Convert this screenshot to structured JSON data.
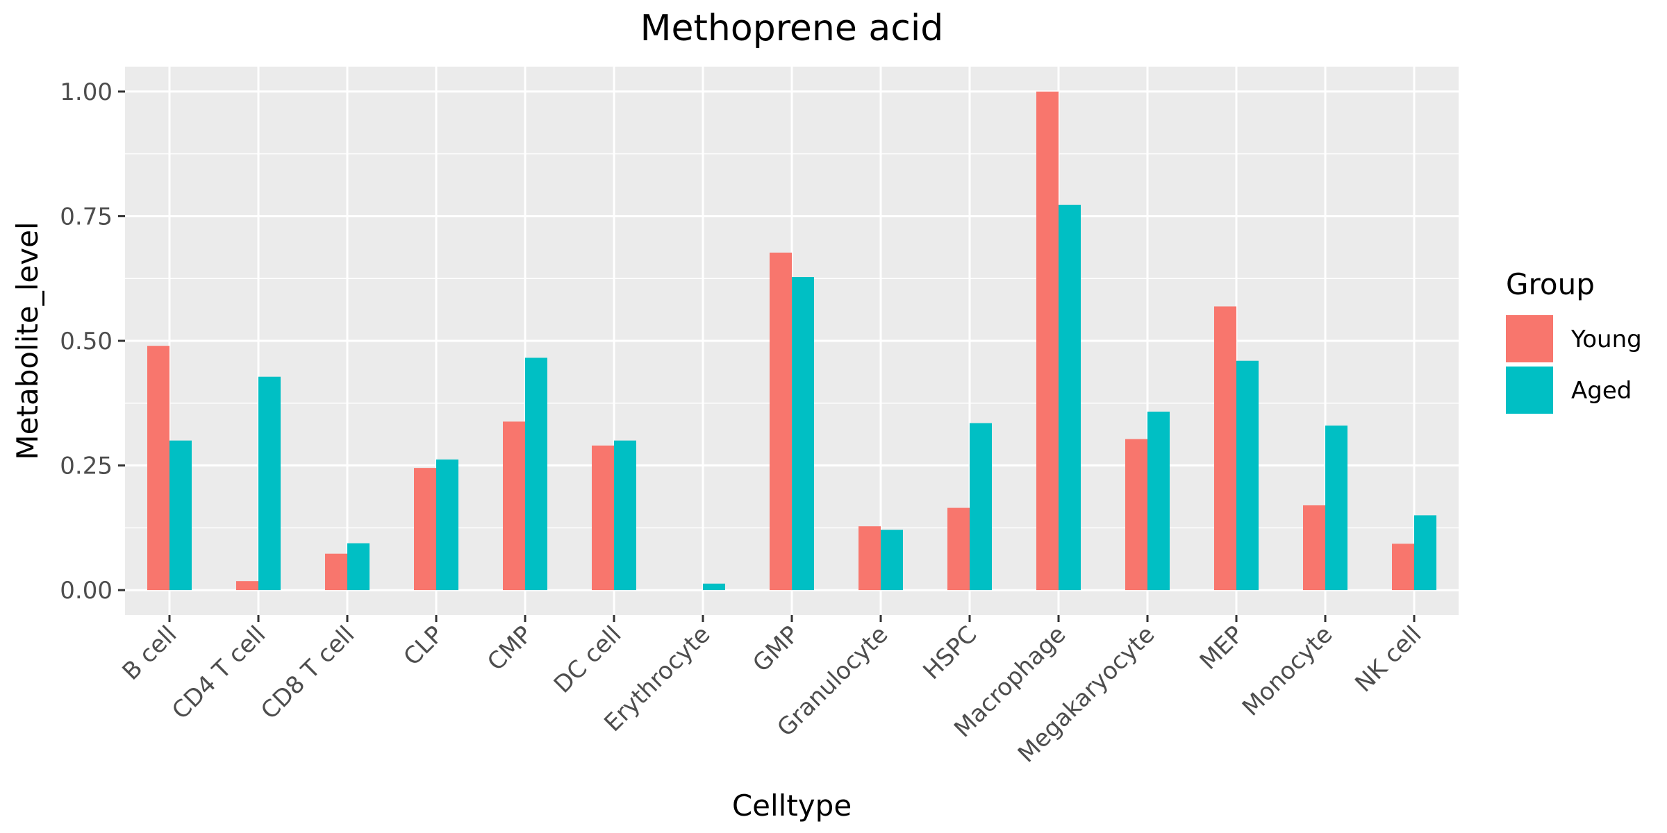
{
  "chart_data": {
    "type": "bar",
    "title": "Methoprene acid",
    "xlabel": "Celltype",
    "ylabel": "Metabolite_level",
    "categories": [
      "B cell",
      "CD4 T cell",
      "CD8 T cell",
      "CLP",
      "CMP",
      "DC cell",
      "Erythrocyte",
      "GMP",
      "Granulocyte",
      "HSPC",
      "Macrophage",
      "Megakaryocyte",
      "MEP",
      "Monocyte",
      "NK cell"
    ],
    "series": [
      {
        "name": "Young",
        "color": "#F8766D",
        "values": [
          0.49,
          0.018,
          0.073,
          0.245,
          0.338,
          0.29,
          0.0,
          0.677,
          0.128,
          0.165,
          1.0,
          0.303,
          0.569,
          0.17,
          0.093
        ]
      },
      {
        "name": "Aged",
        "color": "#00BFC4",
        "values": [
          0.3,
          0.428,
          0.094,
          0.262,
          0.466,
          0.3,
          0.013,
          0.628,
          0.121,
          0.335,
          0.773,
          0.358,
          0.46,
          0.33,
          0.15
        ]
      }
    ],
    "ylim": [
      -0.05,
      1.05
    ],
    "yticks": [
      0.0,
      0.25,
      0.5,
      0.75,
      1.0
    ],
    "ytick_labels": [
      "0.00",
      "0.25",
      "0.50",
      "0.75",
      "1.00"
    ],
    "grid": true,
    "legend": {
      "title": "Group",
      "position": "right"
    },
    "panel_background": "#EBEBEB",
    "grid_color": "#FFFFFF"
  }
}
